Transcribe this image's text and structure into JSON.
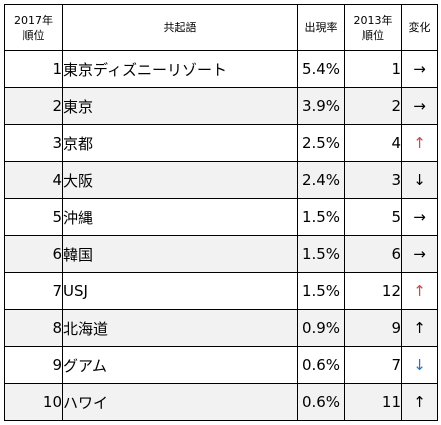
{
  "header": {
    "rank2017_line1": "2017年",
    "rank2017_line2": "順位",
    "word": "共起語",
    "rate": "出現率",
    "rank2013_line1": "2013年",
    "rank2013_line2": "順位",
    "change": "変化"
  },
  "rows": [
    {
      "rank2017": "1",
      "word": "東京ディズニーリゾート",
      "rate": "5.4%",
      "rank2013": "1",
      "change": "→",
      "change_color": "#000000"
    },
    {
      "rank2017": "2",
      "word": "東京",
      "rate": "3.9%",
      "rank2013": "2",
      "change": "→",
      "change_color": "#000000"
    },
    {
      "rank2017": "3",
      "word": "京都",
      "rate": "2.5%",
      "rank2013": "4",
      "change": "↑",
      "change_color": "#c0504d"
    },
    {
      "rank2017": "4",
      "word": "大阪",
      "rate": "2.4%",
      "rank2013": "3",
      "change": "↓",
      "change_color": "#000000"
    },
    {
      "rank2017": "5",
      "word": "沖縄",
      "rate": "1.5%",
      "rank2013": "5",
      "change": "→",
      "change_color": "#000000"
    },
    {
      "rank2017": "6",
      "word": "韓国",
      "rate": "1.5%",
      "rank2013": "6",
      "change": "→",
      "change_color": "#000000"
    },
    {
      "rank2017": "7",
      "word": "USJ",
      "rate": "1.5%",
      "rank2013": "12",
      "change": "↑",
      "change_color": "#c0504d"
    },
    {
      "rank2017": "8",
      "word": "北海道",
      "rate": "0.9%",
      "rank2013": "9",
      "change": "↑",
      "change_color": "#000000"
    },
    {
      "rank2017": "9",
      "word": "グアム",
      "rate": "0.6%",
      "rank2013": "7",
      "change": "↓",
      "change_color": "#2e75b6"
    },
    {
      "rank2017": "10",
      "word": "ハワイ",
      "rate": "0.6%",
      "rank2013": "11",
      "change": "↑",
      "change_color": "#000000"
    }
  ],
  "colors": {
    "shade": "#f2f2f2",
    "border": "#000000",
    "up_red": "#c0504d",
    "down_blue": "#2e75b6"
  }
}
